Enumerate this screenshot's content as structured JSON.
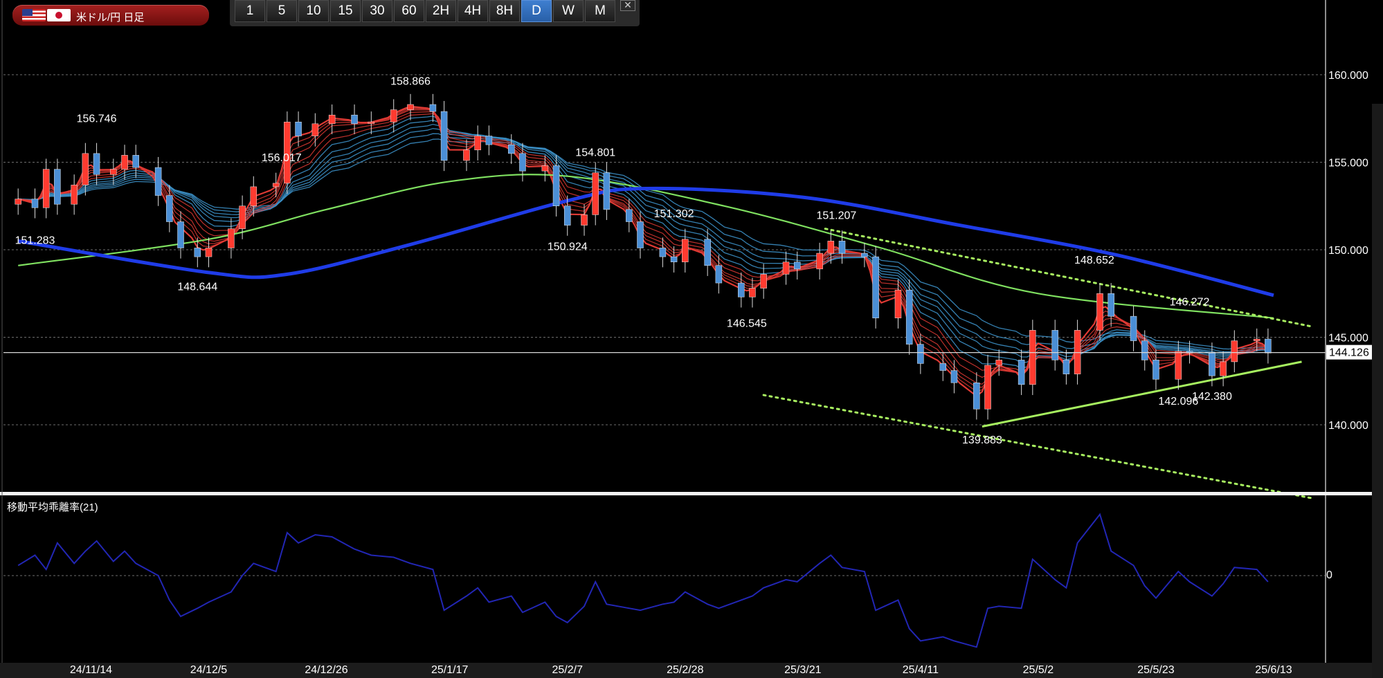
{
  "header": {
    "pair_label": "米ドル/円 日足",
    "flags": [
      "us-flag-icon",
      "jp-flag-icon"
    ],
    "timeframes": [
      "1",
      "5",
      "10",
      "15",
      "30",
      "60",
      "2H",
      "4H",
      "8H",
      "D",
      "W",
      "M"
    ],
    "active_timeframe": "D",
    "close_label": "✕"
  },
  "chart_data": [
    {
      "type": "candlestick",
      "pane": "main",
      "y_axis_ticks": [
        "160.000",
        "155.000",
        "150.000",
        "145.000",
        "140.000"
      ],
      "ylim": [
        136.0,
        163.5
      ],
      "current_price_label": "144.126",
      "current_price": 144.126,
      "x_tick_labels": [
        "24/11/14",
        "24/12/5",
        "24/12/26",
        "25/1/17",
        "25/2/7",
        "25/2/28",
        "25/3/21",
        "25/4/11",
        "25/5/2",
        "25/5/23",
        "25/6/13"
      ],
      "x_range": [
        "24/11/1",
        "25/6/13"
      ],
      "annotations": [
        {
          "label": "151.283",
          "date": "24/11/4",
          "price": 151.283,
          "kind": "low"
        },
        {
          "label": "156.746",
          "date": "24/11/15",
          "price": 156.746,
          "kind": "high"
        },
        {
          "label": "148.644",
          "date": "24/12/3",
          "price": 148.644,
          "kind": "low"
        },
        {
          "label": "156.017",
          "date": "24/12/18",
          "price": 156.017,
          "kind": "low"
        },
        {
          "label": "158.866",
          "date": "25/1/10",
          "price": 158.866,
          "kind": "high"
        },
        {
          "label": "150.924",
          "date": "25/2/7",
          "price": 150.924,
          "kind": "low"
        },
        {
          "label": "154.801",
          "date": "25/2/12",
          "price": 154.801,
          "kind": "high"
        },
        {
          "label": "151.302",
          "date": "25/2/26",
          "price": 151.302,
          "kind": "high"
        },
        {
          "label": "146.545",
          "date": "25/3/11",
          "price": 146.545,
          "kind": "low"
        },
        {
          "label": "151.207",
          "date": "25/3/27",
          "price": 151.207,
          "kind": "high"
        },
        {
          "label": "139.883",
          "date": "25/4/22",
          "price": 139.883,
          "kind": "low"
        },
        {
          "label": "148.652",
          "date": "25/5/12",
          "price": 148.652,
          "kind": "high"
        },
        {
          "label": "146.272",
          "date": "25/5/29",
          "price": 146.272,
          "kind": "high"
        },
        {
          "label": "142.096",
          "date": "25/5/27",
          "price": 142.096,
          "kind": "low"
        },
        {
          "label": "142.380",
          "date": "25/6/2",
          "price": 142.38,
          "kind": "low"
        }
      ],
      "close_series": [
        [
          "24/11/1",
          152.9
        ],
        [
          "24/11/4",
          152.4
        ],
        [
          "24/11/6",
          154.6
        ],
        [
          "24/11/8",
          152.6
        ],
        [
          "24/11/11",
          153.7
        ],
        [
          "24/11/13",
          155.5
        ],
        [
          "24/11/15",
          154.3
        ],
        [
          "24/11/18",
          154.6
        ],
        [
          "24/11/20",
          155.4
        ],
        [
          "24/11/22",
          154.7
        ],
        [
          "24/11/26",
          153.1
        ],
        [
          "24/11/28",
          151.6
        ],
        [
          "24/11/30",
          150.1
        ],
        [
          "24/12/3",
          149.6
        ],
        [
          "24/12/5",
          150.1
        ],
        [
          "24/12/9",
          151.2
        ],
        [
          "24/12/11",
          152.5
        ],
        [
          "24/12/13",
          153.6
        ],
        [
          "24/12/17",
          153.8
        ],
        [
          "24/12/19",
          157.3
        ],
        [
          "24/12/21",
          156.5
        ],
        [
          "24/12/24",
          157.2
        ],
        [
          "24/12/27",
          157.7
        ],
        [
          "24/12/31",
          157.2
        ],
        [
          "25/1/3",
          157.3
        ],
        [
          "25/1/7",
          158.0
        ],
        [
          "25/1/10",
          158.3
        ],
        [
          "25/1/14",
          157.9
        ],
        [
          "25/1/16",
          155.1
        ],
        [
          "25/1/20",
          155.7
        ],
        [
          "25/1/22",
          156.5
        ],
        [
          "25/1/24",
          156.0
        ],
        [
          "25/1/28",
          155.5
        ],
        [
          "25/1/30",
          154.5
        ],
        [
          "25/2/3",
          154.8
        ],
        [
          "25/2/5",
          152.5
        ],
        [
          "25/2/7",
          151.4
        ],
        [
          "25/2/10",
          152.0
        ],
        [
          "25/2/12",
          154.4
        ],
        [
          "25/2/14",
          152.3
        ],
        [
          "25/2/18",
          151.6
        ],
        [
          "25/2/20",
          150.1
        ],
        [
          "25/2/24",
          149.6
        ],
        [
          "25/2/26",
          149.3
        ],
        [
          "25/2/28",
          150.6
        ],
        [
          "25/3/4",
          149.1
        ],
        [
          "25/3/6",
          148.1
        ],
        [
          "25/3/10",
          147.3
        ],
        [
          "25/3/12",
          147.8
        ],
        [
          "25/3/14",
          148.6
        ],
        [
          "25/3/18",
          149.3
        ],
        [
          "25/3/20",
          148.9
        ],
        [
          "25/3/24",
          149.8
        ],
        [
          "25/3/26",
          150.5
        ],
        [
          "25/3/28",
          149.8
        ],
        [
          "25/4/1",
          149.6
        ],
        [
          "25/4/3",
          146.1
        ],
        [
          "25/4/7",
          147.7
        ],
        [
          "25/4/9",
          144.6
        ],
        [
          "25/4/11",
          143.5
        ],
        [
          "25/4/15",
          143.1
        ],
        [
          "25/4/17",
          142.4
        ],
        [
          "25/4/21",
          140.9
        ],
        [
          "25/4/23",
          143.4
        ],
        [
          "25/4/25",
          143.7
        ],
        [
          "25/4/29",
          142.3
        ],
        [
          "25/5/1",
          145.4
        ],
        [
          "25/5/5",
          143.7
        ],
        [
          "25/5/7",
          142.9
        ],
        [
          "25/5/9",
          145.4
        ],
        [
          "25/5/13",
          147.5
        ],
        [
          "25/5/15",
          146.2
        ],
        [
          "25/5/19",
          144.8
        ],
        [
          "25/5/21",
          143.7
        ],
        [
          "25/5/23",
          142.6
        ],
        [
          "25/5/27",
          144.2
        ],
        [
          "25/5/29",
          144.1
        ],
        [
          "25/6/2",
          142.8
        ],
        [
          "25/6/4",
          143.6
        ],
        [
          "25/6/6",
          144.8
        ],
        [
          "25/6/10",
          144.9
        ],
        [
          "25/6/12",
          144.1
        ]
      ],
      "overlays": {
        "long_ma_blue": [
          [
            "24/11/1",
            150.5
          ],
          [
            "24/12/5",
            148.7
          ],
          [
            "24/12/19",
            148.6
          ],
          [
            "25/1/10",
            150.3
          ],
          [
            "25/2/7",
            152.8
          ],
          [
            "25/2/21",
            153.5
          ],
          [
            "25/3/21",
            153.0
          ],
          [
            "25/4/18",
            151.4
          ],
          [
            "25/5/16",
            149.7
          ],
          [
            "25/6/13",
            147.4
          ]
        ],
        "mid_ma_green": [
          [
            "24/11/1",
            149.1
          ],
          [
            "24/12/5",
            150.6
          ],
          [
            "24/12/26",
            152.3
          ],
          [
            "25/1/17",
            153.9
          ],
          [
            "25/2/7",
            154.2
          ],
          [
            "25/3/7",
            152.5
          ],
          [
            "25/4/4",
            150.1
          ],
          [
            "25/5/2",
            147.5
          ],
          [
            "25/6/13",
            146.1
          ]
        ],
        "upper_channel_dotted": [
          [
            "25/3/25",
            151.2
          ],
          [
            "25/6/20",
            145.6
          ]
        ],
        "lower_channel_dotted": [
          [
            "25/3/14",
            141.7
          ],
          [
            "25/6/20",
            135.8
          ]
        ],
        "support_trendline": [
          [
            "25/4/22",
            139.9
          ],
          [
            "25/6/18",
            143.6
          ]
        ]
      },
      "ribbon_colors": {
        "red": "#e03a34",
        "blue": "#3b8ec4",
        "green": "#7fe060",
        "long": "#1f3ce8",
        "candle_up": "#ff3b30",
        "candle_down": "#4b8fd6"
      }
    },
    {
      "type": "line",
      "pane": "sub",
      "title": "移動平均乖離率(21)",
      "zero_label": "0",
      "ylim": [
        -4.0,
        3.9
      ],
      "color": "#2226b4",
      "series": [
        [
          "24/11/1",
          0.5
        ],
        [
          "24/11/4",
          1.0
        ],
        [
          "24/11/6",
          0.3
        ],
        [
          "24/11/8",
          1.6
        ],
        [
          "24/11/11",
          0.6
        ],
        [
          "24/11/13",
          1.2
        ],
        [
          "24/11/15",
          1.7
        ],
        [
          "24/11/18",
          0.7
        ],
        [
          "24/11/20",
          1.2
        ],
        [
          "24/11/22",
          0.6
        ],
        [
          "24/11/26",
          0.0
        ],
        [
          "24/11/28",
          -1.2
        ],
        [
          "24/11/30",
          -2.0
        ],
        [
          "24/12/3",
          -1.6
        ],
        [
          "24/12/5",
          -1.3
        ],
        [
          "24/12/9",
          -0.8
        ],
        [
          "24/12/11",
          0.0
        ],
        [
          "24/12/13",
          0.6
        ],
        [
          "24/12/17",
          0.2
        ],
        [
          "24/12/19",
          2.1
        ],
        [
          "24/12/21",
          1.6
        ],
        [
          "24/12/24",
          2.0
        ],
        [
          "24/12/27",
          1.9
        ],
        [
          "24/12/31",
          1.3
        ],
        [
          "25/1/3",
          1.0
        ],
        [
          "25/1/7",
          0.9
        ],
        [
          "25/1/10",
          0.6
        ],
        [
          "25/1/14",
          0.3
        ],
        [
          "25/1/16",
          -1.7
        ],
        [
          "25/1/20",
          -1.0
        ],
        [
          "25/1/22",
          -0.6
        ],
        [
          "25/1/24",
          -1.3
        ],
        [
          "25/1/28",
          -1.0
        ],
        [
          "25/1/30",
          -1.8
        ],
        [
          "25/2/3",
          -1.3
        ],
        [
          "25/2/5",
          -2.0
        ],
        [
          "25/2/7",
          -2.3
        ],
        [
          "25/2/10",
          -1.5
        ],
        [
          "25/2/12",
          -0.3
        ],
        [
          "25/2/14",
          -1.4
        ],
        [
          "25/2/18",
          -1.6
        ],
        [
          "25/2/20",
          -1.7
        ],
        [
          "25/2/24",
          -1.4
        ],
        [
          "25/2/26",
          -1.3
        ],
        [
          "25/2/28",
          -0.8
        ],
        [
          "25/3/4",
          -1.4
        ],
        [
          "25/3/6",
          -1.6
        ],
        [
          "25/3/10",
          -1.2
        ],
        [
          "25/3/12",
          -1.0
        ],
        [
          "25/3/14",
          -0.6
        ],
        [
          "25/3/18",
          -0.2
        ],
        [
          "25/3/20",
          -0.3
        ],
        [
          "25/3/24",
          0.6
        ],
        [
          "25/3/26",
          1.0
        ],
        [
          "25/3/28",
          0.4
        ],
        [
          "25/4/1",
          0.2
        ],
        [
          "25/4/3",
          -1.7
        ],
        [
          "25/4/7",
          -1.2
        ],
        [
          "25/4/9",
          -2.6
        ],
        [
          "25/4/11",
          -3.2
        ],
        [
          "25/4/15",
          -3.0
        ],
        [
          "25/4/17",
          -3.2
        ],
        [
          "25/4/21",
          -3.5
        ],
        [
          "25/4/23",
          -1.6
        ],
        [
          "25/4/25",
          -1.5
        ],
        [
          "25/4/29",
          -1.6
        ],
        [
          "25/5/1",
          0.8
        ],
        [
          "25/5/5",
          -0.2
        ],
        [
          "25/5/7",
          -0.6
        ],
        [
          "25/5/9",
          1.6
        ],
        [
          "25/5/13",
          3.0
        ],
        [
          "25/5/15",
          1.2
        ],
        [
          "25/5/19",
          0.5
        ],
        [
          "25/5/21",
          -0.5
        ],
        [
          "25/5/23",
          -1.1
        ],
        [
          "25/5/27",
          0.2
        ],
        [
          "25/5/29",
          -0.3
        ],
        [
          "25/6/2",
          -1.0
        ],
        [
          "25/6/4",
          -0.4
        ],
        [
          "25/6/6",
          0.4
        ],
        [
          "25/6/10",
          0.3
        ],
        [
          "25/6/12",
          -0.3
        ]
      ]
    }
  ]
}
